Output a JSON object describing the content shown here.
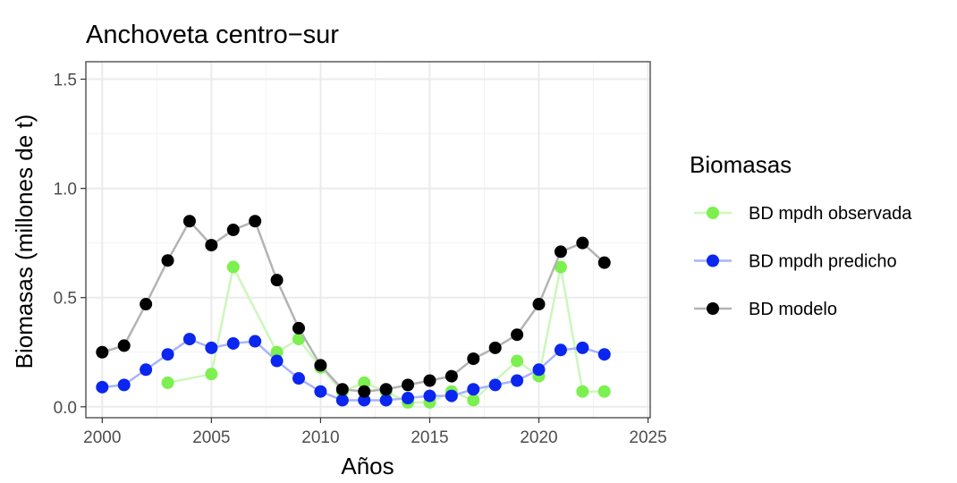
{
  "chart_data": {
    "type": "line",
    "title": "Anchoveta centro−sur",
    "xlabel": "Años",
    "ylabel": "Biomasas (millones de t)",
    "xlim": [
      1999.25,
      2025.1
    ],
    "ylim": [
      -0.05,
      1.58
    ],
    "x_ticks": [
      2000,
      2005,
      2010,
      2015,
      2020,
      2025
    ],
    "x_tick_labels": [
      "2000",
      "2005",
      "2010",
      "2015",
      "2020",
      "2025"
    ],
    "y_ticks": [
      0.0,
      0.5,
      1.0,
      1.5
    ],
    "y_tick_labels": [
      "0.0",
      "0.5",
      "1.0",
      "1.5"
    ],
    "grid": true,
    "legend": {
      "title": "Biomasas",
      "position": "right"
    },
    "series": [
      {
        "name": "BD mpdh observada",
        "color": "#7cf04e",
        "line_color": "#ccf7bb",
        "x": [
          2003,
          2005,
          2006,
          2008,
          2009,
          2010,
          2011,
          2012,
          2013,
          2014,
          2015,
          2016,
          2017,
          2019,
          2020,
          2021,
          2022,
          2023
        ],
        "y": [
          0.11,
          0.15,
          0.64,
          0.25,
          0.31,
          0.18,
          0.07,
          0.11,
          0.07,
          0.02,
          0.02,
          0.07,
          0.03,
          0.21,
          0.14,
          0.64,
          0.07,
          0.07
        ]
      },
      {
        "name": "BD mpdh predicho",
        "color": "#0a26ef",
        "line_color": "#a9b3f8",
        "x": [
          2000,
          2001,
          2002,
          2003,
          2004,
          2005,
          2006,
          2007,
          2008,
          2009,
          2010,
          2011,
          2012,
          2013,
          2014,
          2015,
          2016,
          2017,
          2018,
          2019,
          2020,
          2021,
          2022,
          2023
        ],
        "y": [
          0.09,
          0.1,
          0.17,
          0.24,
          0.31,
          0.27,
          0.29,
          0.3,
          0.21,
          0.13,
          0.07,
          0.03,
          0.03,
          0.03,
          0.04,
          0.05,
          0.05,
          0.08,
          0.1,
          0.12,
          0.17,
          0.26,
          0.27,
          0.24
        ]
      },
      {
        "name": "BD modelo",
        "color": "#000000",
        "line_color": "#b3b3b3",
        "x": [
          2000,
          2001,
          2002,
          2003,
          2004,
          2005,
          2006,
          2007,
          2008,
          2009,
          2010,
          2011,
          2012,
          2013,
          2014,
          2015,
          2016,
          2017,
          2018,
          2019,
          2020,
          2021,
          2022,
          2023
        ],
        "y": [
          0.25,
          0.28,
          0.47,
          0.67,
          0.85,
          0.74,
          0.81,
          0.85,
          0.58,
          0.36,
          0.19,
          0.08,
          0.07,
          0.08,
          0.1,
          0.12,
          0.14,
          0.22,
          0.27,
          0.33,
          0.47,
          0.71,
          0.75,
          0.66
        ]
      }
    ]
  }
}
